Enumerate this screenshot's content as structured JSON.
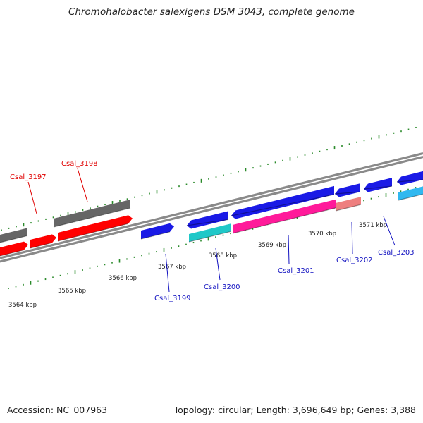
{
  "title": "Chromohalobacter salexigens DSM 3043, complete genome",
  "footer": {
    "accession": "Accession: NC_007963",
    "stats": "Topology: circular; Length: 3,696,649 bp; Genes: 3,388"
  },
  "map": {
    "ticks": [
      "3564 kbp",
      "3565 kbp",
      "3566 kbp",
      "3567 kbp",
      "3568 kbp",
      "3569 kbp",
      "3570 kbp",
      "3571 kbp"
    ],
    "genes": [
      {
        "name": "Csal_3197",
        "strand": "reverse",
        "colour": "#e00000"
      },
      {
        "name": "Csal_3198",
        "strand": "reverse",
        "colour": "#e00000"
      },
      {
        "name": "Csal_3199",
        "strand": "forward",
        "colour": "#1010c0"
      },
      {
        "name": "Csal_3200",
        "strand": "forward",
        "colour": "#1010c0"
      },
      {
        "name": "Csal_3201",
        "strand": "forward",
        "colour": "#1010c0"
      },
      {
        "name": "Csal_3202",
        "strand": "forward",
        "colour": "#1010c0"
      },
      {
        "name": "Csal_3203",
        "strand": "forward",
        "colour": "#1010c0"
      }
    ],
    "colors": {
      "backbone": "#8a8a8a",
      "tick": "#2a8a2a",
      "reverse_gene": "#ff0000",
      "forward_gene": "#1a1ae6",
      "cyan_feature": "#20c8c8",
      "sky_feature": "#30b8f0",
      "magenta_feature": "#ff1a9a",
      "salmon_feature": "#ee7f7f",
      "grey_feature": "#666666"
    }
  }
}
